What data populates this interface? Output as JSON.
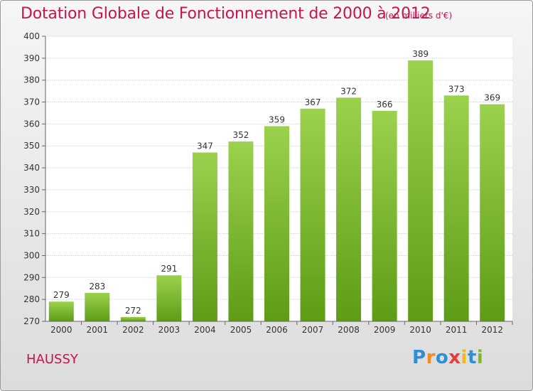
{
  "chart_data": {
    "type": "bar",
    "title": "Dotation Globale de Fonctionnement de 2000 à 2012",
    "unit": "(en milliers d'€)",
    "categories": [
      "2000",
      "2001",
      "2002",
      "2003",
      "2004",
      "2005",
      "2006",
      "2007",
      "2008",
      "2009",
      "2010",
      "2011",
      "2012"
    ],
    "values": [
      279,
      283,
      272,
      291,
      347,
      352,
      359,
      367,
      372,
      366,
      389,
      373,
      369
    ],
    "ylim": [
      270,
      400
    ],
    "yticks": [
      270,
      280,
      290,
      300,
      310,
      320,
      330,
      340,
      350,
      360,
      370,
      380,
      390,
      400
    ],
    "grid": true,
    "bar_color": "#7cba2c"
  },
  "commune": "HAUSSY",
  "logo": {
    "letters": [
      "P",
      "r",
      "o",
      "x",
      "i",
      "t",
      "i"
    ],
    "colors": [
      "#2f8fd6",
      "#f28a1e",
      "#2f8fd6",
      "#e83b3b",
      "#f2b81e",
      "#2f8fd6",
      "#7cba2c"
    ]
  }
}
